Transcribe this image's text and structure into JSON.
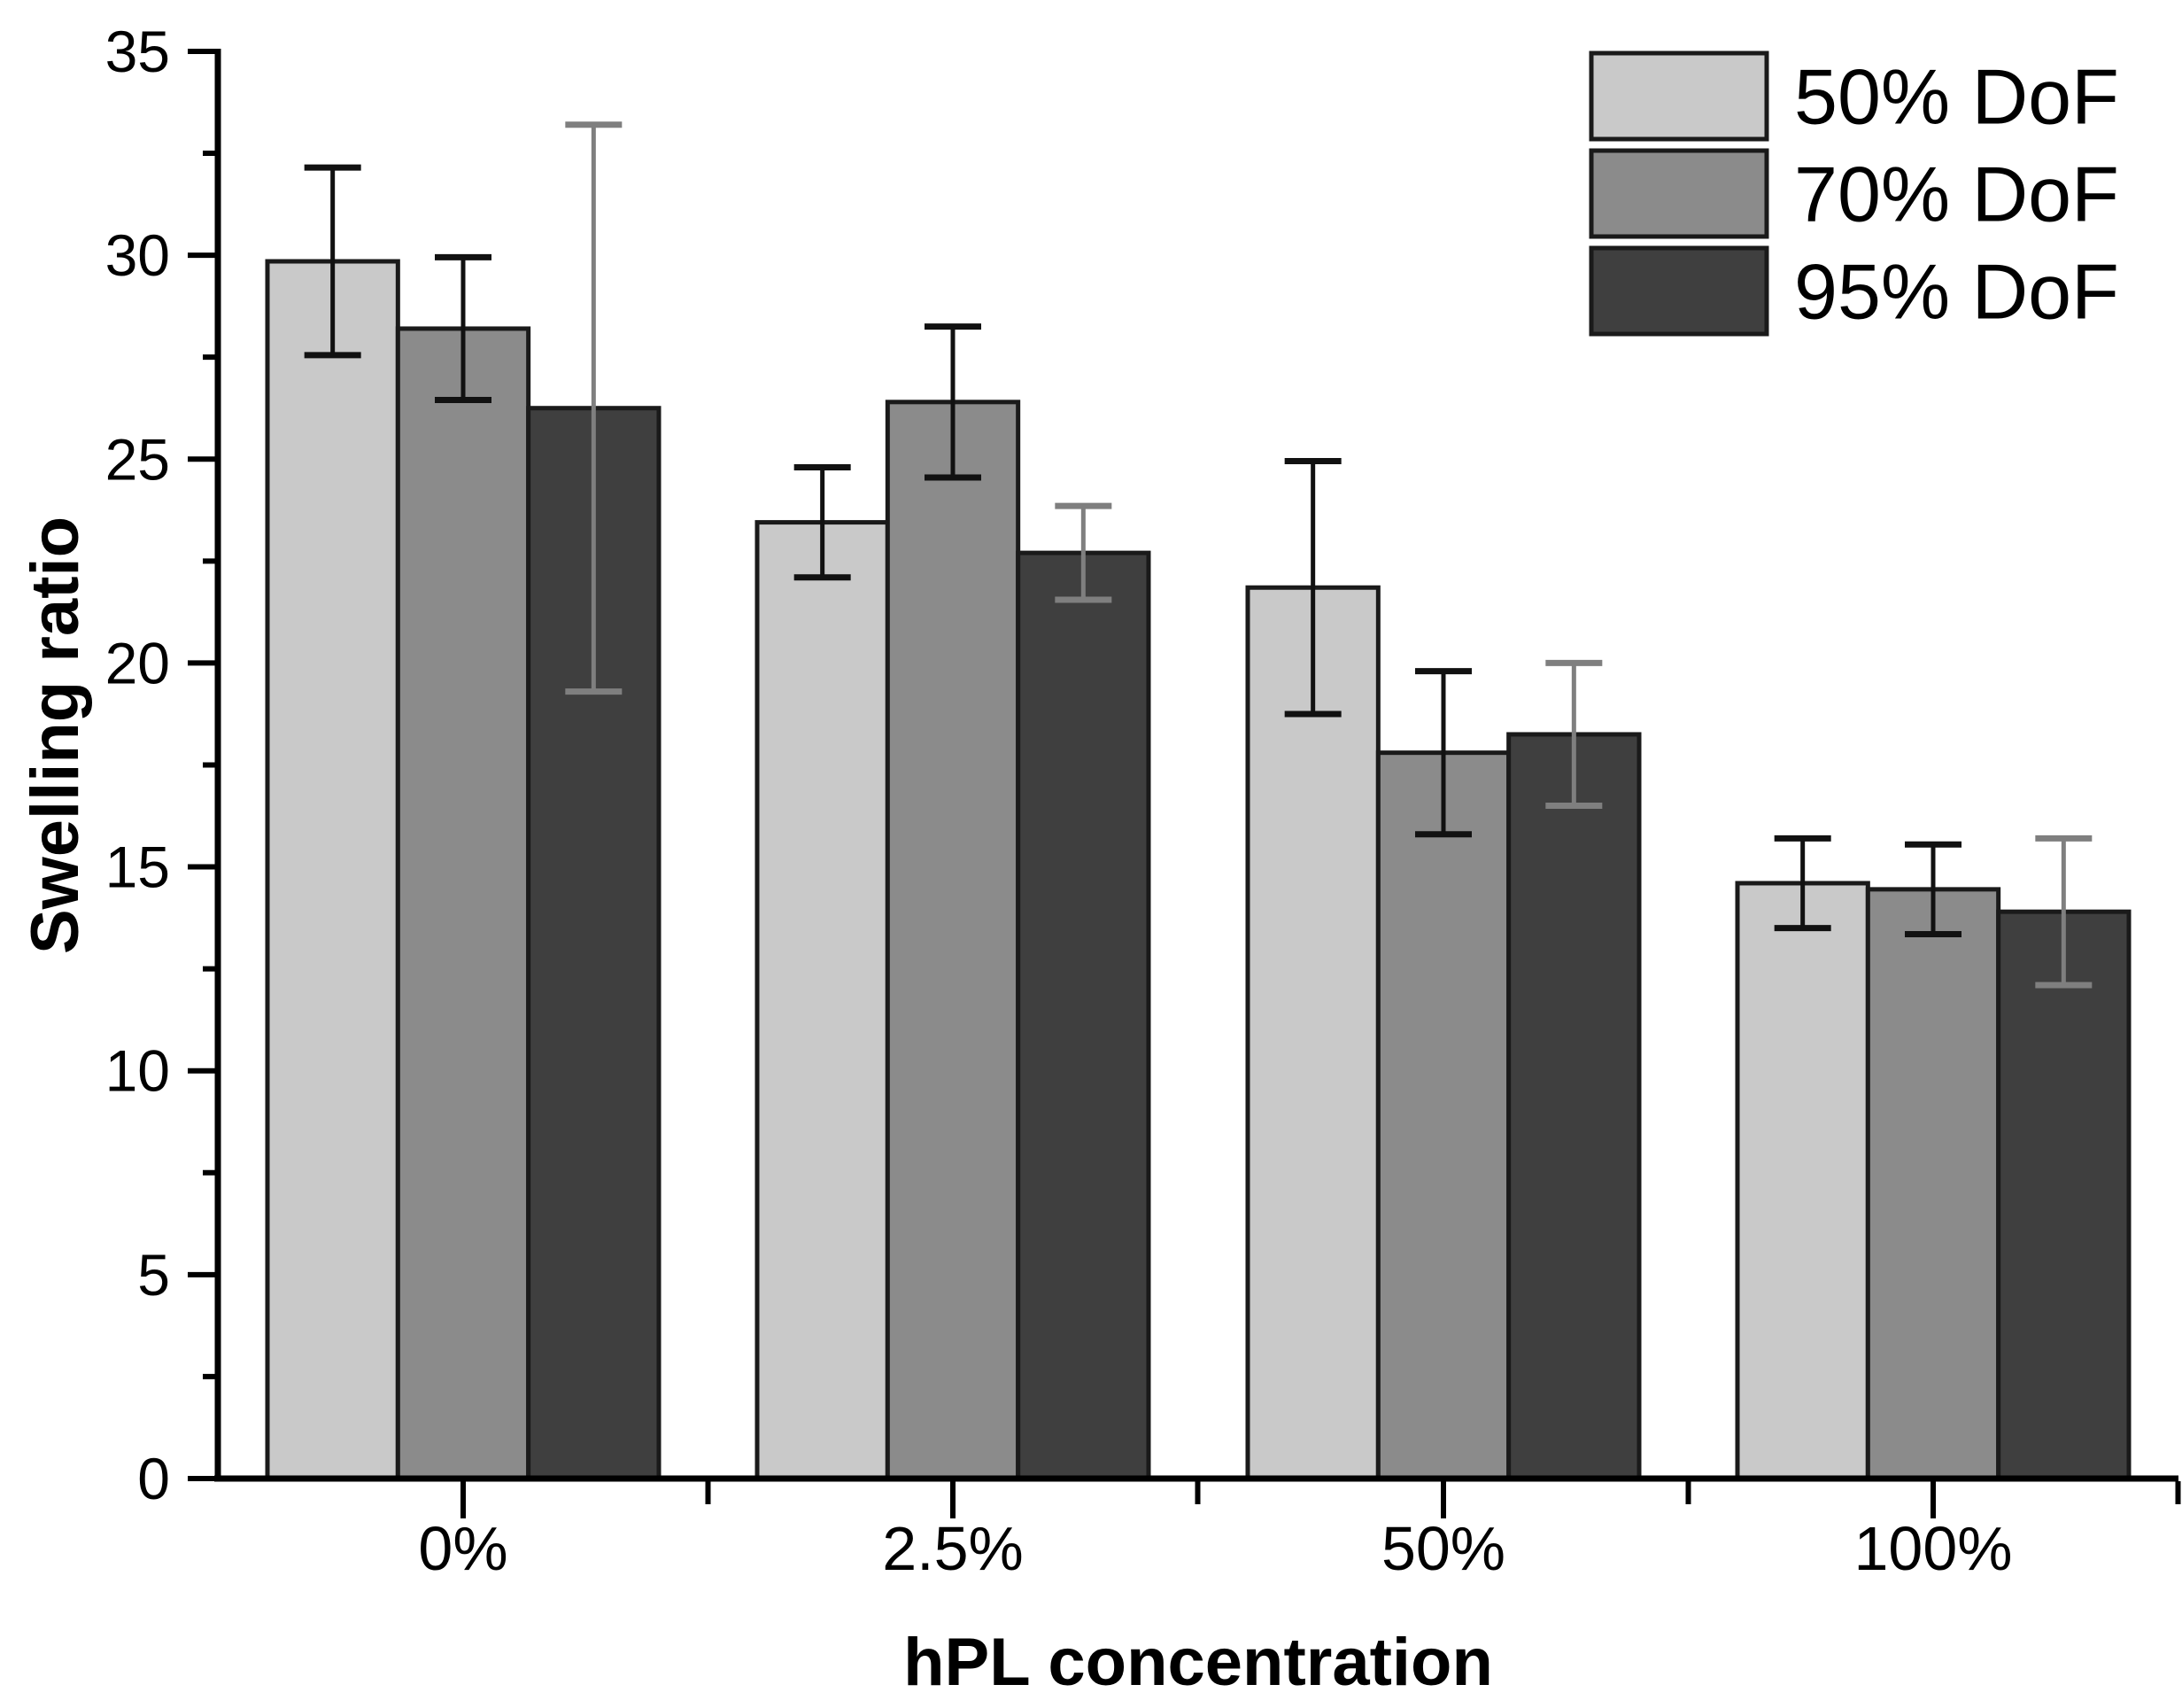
{
  "chart_data": {
    "type": "bar",
    "title": "",
    "xlabel": "hPL concentration",
    "ylabel": "Swelling ratio",
    "categories": [
      "0%",
      "2.5%",
      "50%",
      "100%"
    ],
    "series": [
      {
        "name": "50% DoF",
        "color": "#c9c9c9",
        "error_color": "#111111",
        "values": [
          29.85,
          23.45,
          21.85,
          14.6
        ],
        "errors": [
          2.3,
          1.35,
          3.1,
          1.1
        ]
      },
      {
        "name": "70% DoF",
        "color": "#8b8b8b",
        "error_color": "#111111",
        "values": [
          28.2,
          26.4,
          17.8,
          14.45
        ],
        "errors": [
          1.75,
          1.85,
          2.0,
          1.1
        ]
      },
      {
        "name": "95% DoF",
        "color": "#3f3f3f",
        "error_color": "#7f7f7f",
        "values": [
          26.25,
          22.7,
          18.25,
          13.9
        ],
        "errors": [
          6.95,
          1.15,
          1.75,
          1.8
        ]
      }
    ],
    "ylim": [
      0,
      35
    ],
    "yticks": [
      0,
      5,
      10,
      15,
      20,
      25,
      30,
      35
    ],
    "minor_tick_step": 2.5,
    "grid": false,
    "legend_position": "top-right",
    "error_bars": true,
    "bar_edge_color": "#1a1a1a",
    "axis_color": "#000000"
  }
}
